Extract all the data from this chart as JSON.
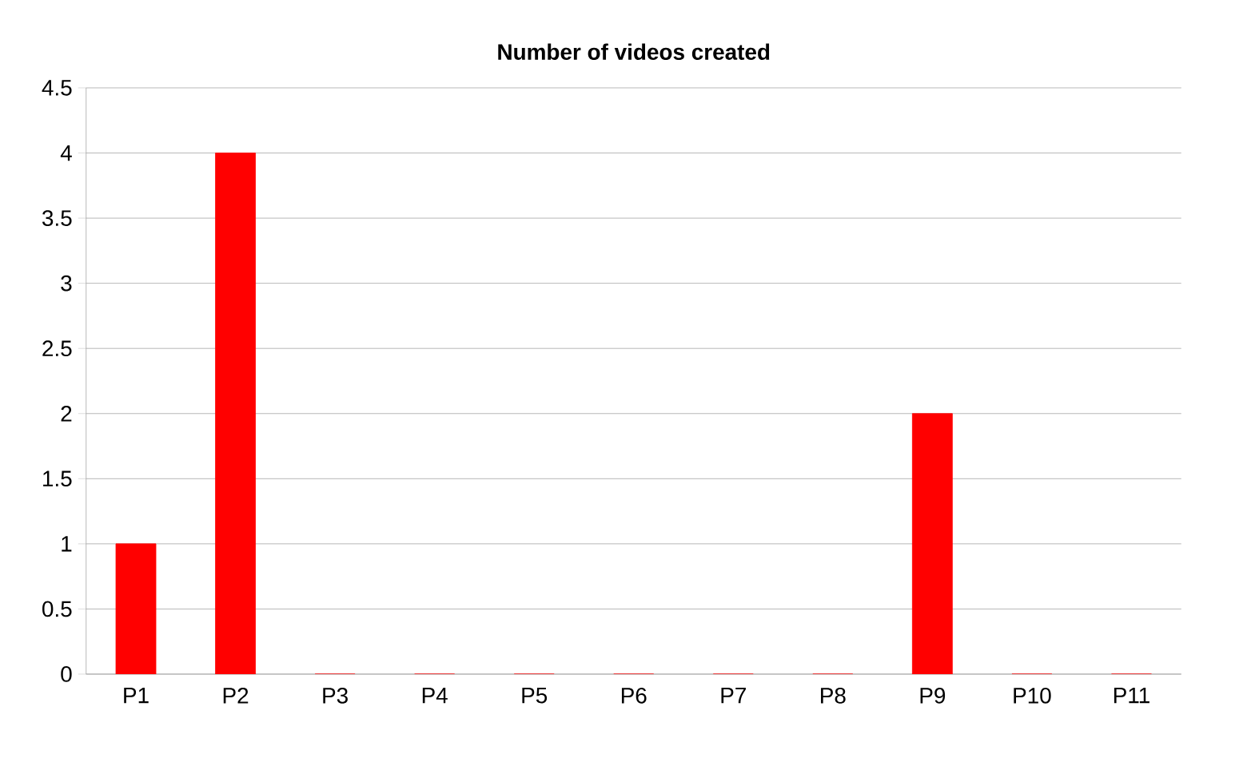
{
  "chart_data": {
    "type": "bar",
    "title": "Number of videos created",
    "categories": [
      "P1",
      "P2",
      "P3",
      "P4",
      "P5",
      "P6",
      "P7",
      "P8",
      "P9",
      "P10",
      "P11"
    ],
    "values": [
      1,
      4,
      0,
      0,
      0,
      0,
      0,
      0,
      2,
      0,
      0
    ],
    "color": "#ff0000",
    "ylim": [
      0,
      4.5
    ],
    "yticks": [
      0,
      0.5,
      1,
      1.5,
      2,
      2.5,
      3,
      3.5,
      4,
      4.5
    ],
    "grid": "y"
  }
}
